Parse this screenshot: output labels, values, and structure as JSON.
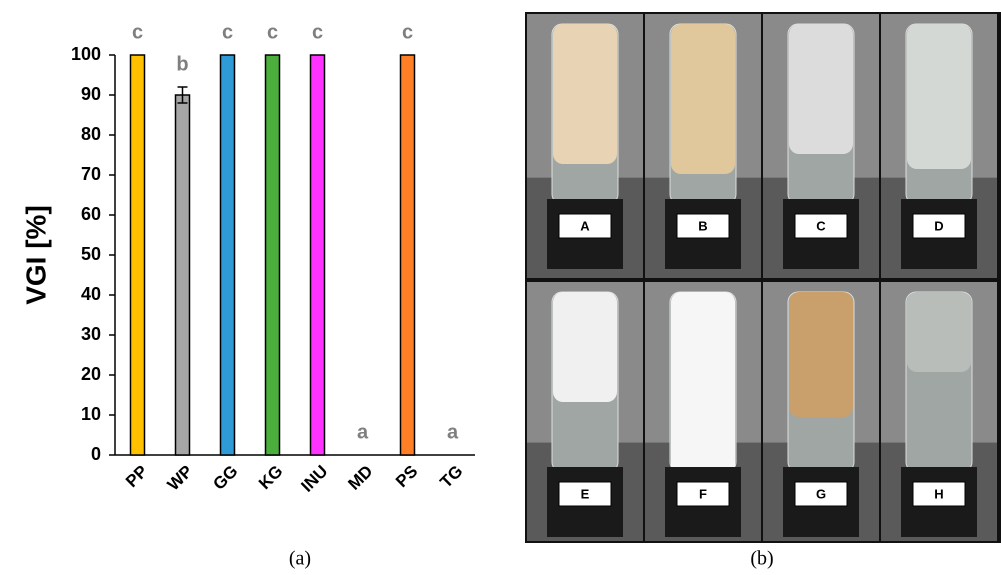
{
  "chart_data": {
    "type": "bar",
    "ylabel": "VGI [%]",
    "categories": [
      "PP",
      "WP",
      "GG",
      "KG",
      "INU",
      "MD",
      "PS",
      "TG"
    ],
    "values": [
      100,
      90,
      100,
      100,
      100,
      0,
      100,
      0
    ],
    "errors": [
      0,
      2,
      0,
      0,
      0,
      0,
      0,
      0
    ],
    "letters": [
      "c",
      "b",
      "c",
      "c",
      "c",
      "a",
      "c",
      "a"
    ],
    "colors": [
      "#ffc000",
      "#a6a6a6",
      "#2e9ad6",
      "#4cae3c",
      "#ff33ff",
      "#7f7f7f",
      "#ff7f27",
      "#7f7f7f"
    ],
    "ylim": [
      0,
      100
    ],
    "yticks": [
      0,
      10,
      20,
      30,
      40,
      50,
      60,
      70,
      80,
      90,
      100
    ],
    "grid": false
  },
  "panel_a_caption": "(a)",
  "photo": {
    "labels": [
      "A",
      "B",
      "C",
      "D",
      "E",
      "F",
      "G",
      "H"
    ],
    "caption": "(b)"
  }
}
